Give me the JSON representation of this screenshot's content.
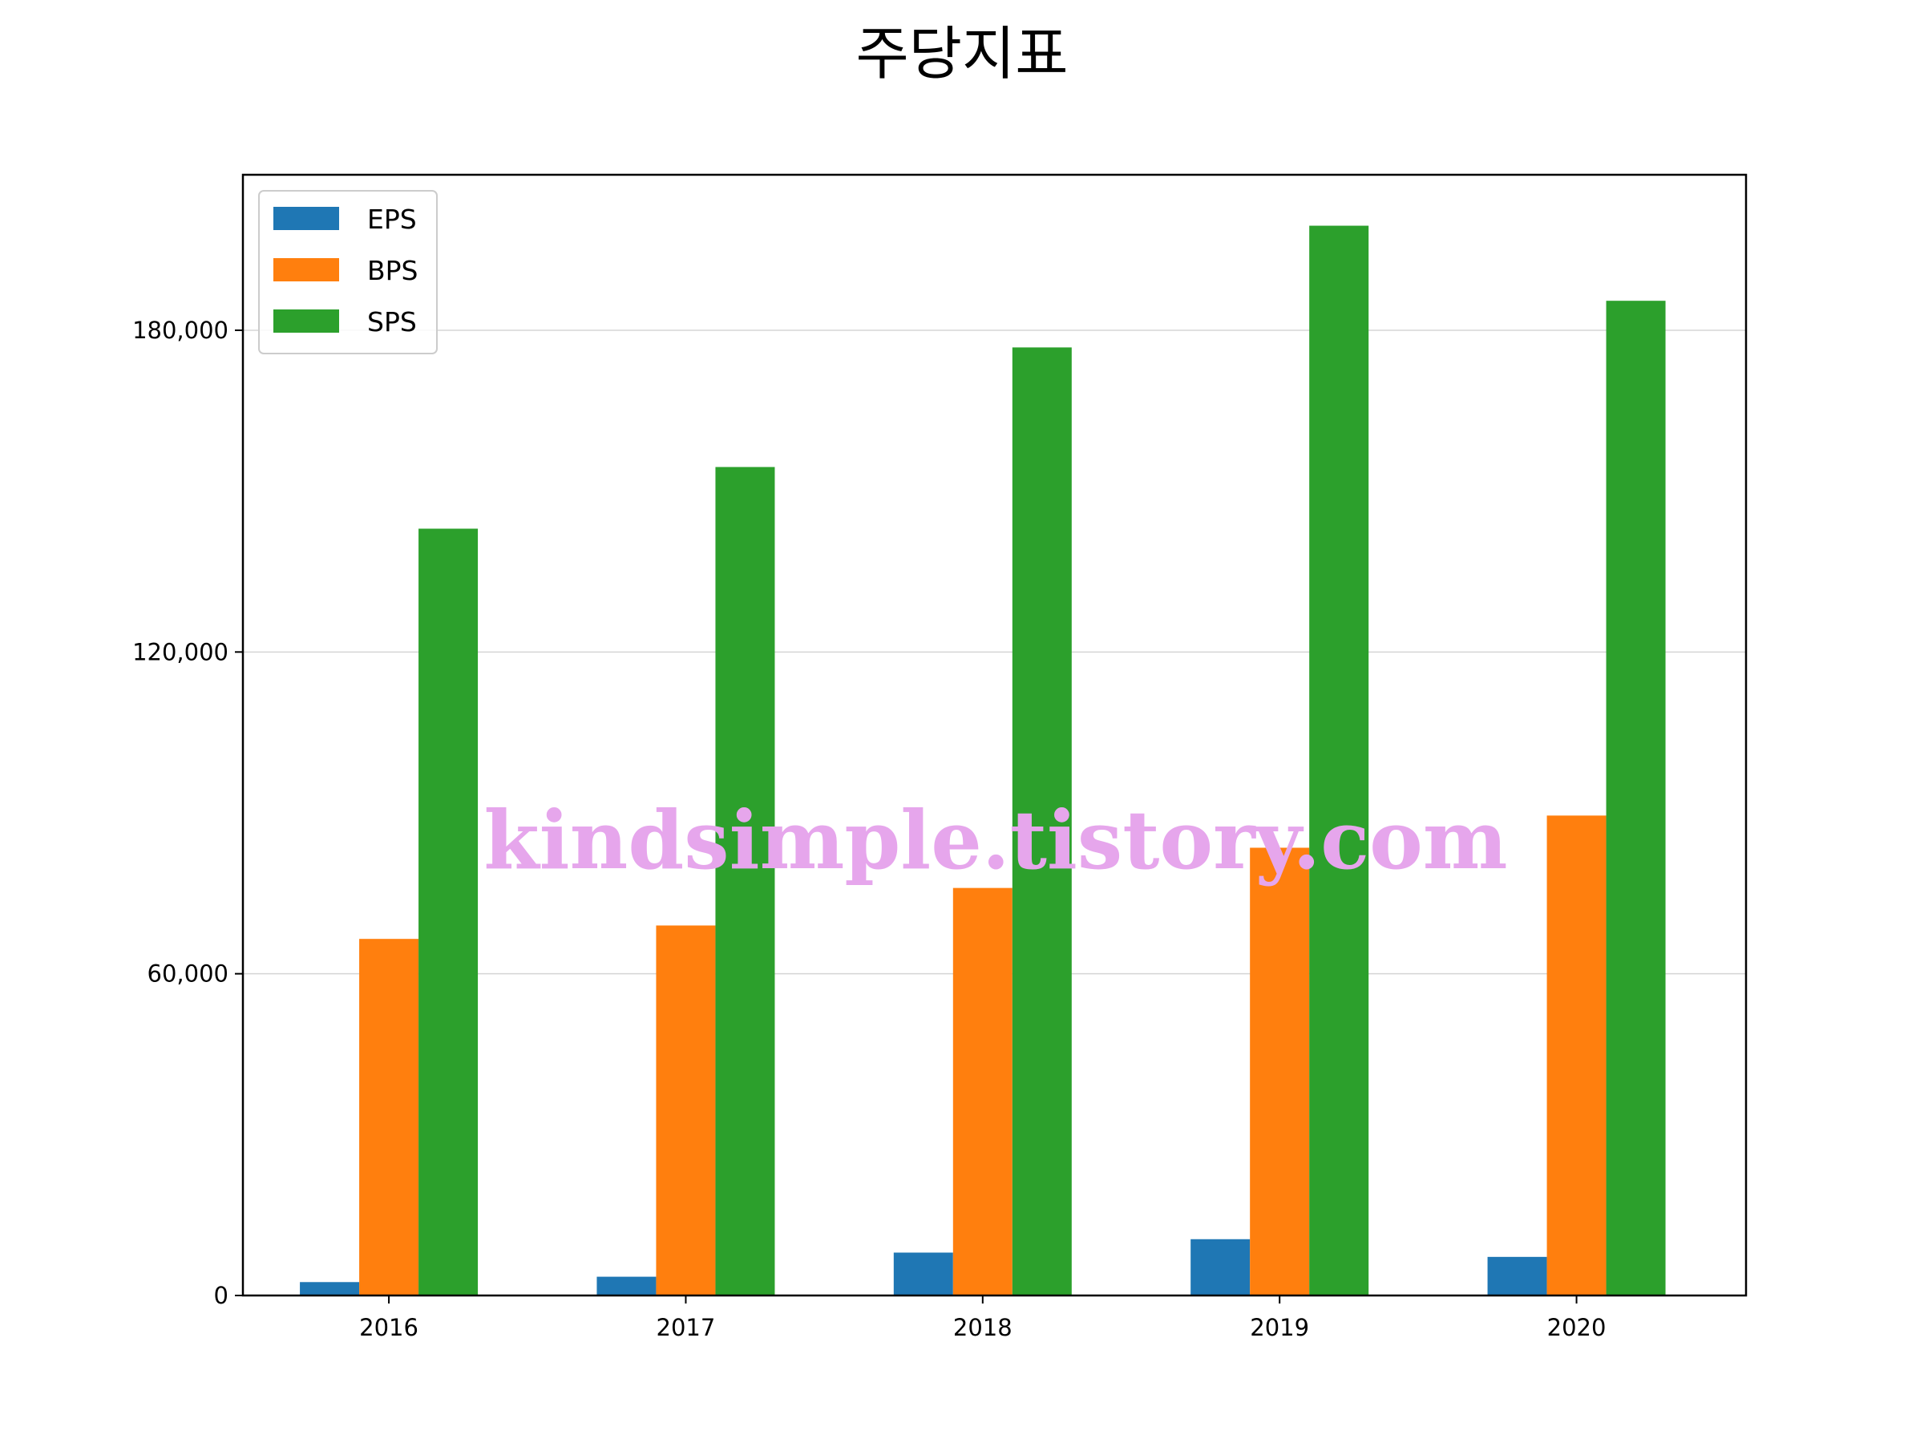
{
  "chart_data": {
    "type": "bar",
    "title": "주당지표",
    "xlabel": "",
    "ylabel": "",
    "categories": [
      "2016",
      "2017",
      "2018",
      "2019",
      "2020"
    ],
    "series": [
      {
        "name": "EPS",
        "color": "#1f77b4",
        "values": [
          2500,
          3500,
          8000,
          10500,
          7200
        ]
      },
      {
        "name": "BPS",
        "color": "#ff7f0e",
        "values": [
          66500,
          69000,
          76000,
          83500,
          89500
        ]
      },
      {
        "name": "SPS",
        "color": "#2ca02c",
        "values": [
          143000,
          154500,
          176800,
          199500,
          185500
        ]
      }
    ],
    "ylim": [
      0,
      209000
    ],
    "yticks": [
      0,
      60000,
      120000,
      180000
    ],
    "ytick_labels": [
      "0",
      "60,000",
      "120,000",
      "180,000"
    ],
    "grid": "y",
    "legend_position": "top-left",
    "watermark": "kindsimple.tistory.com"
  }
}
